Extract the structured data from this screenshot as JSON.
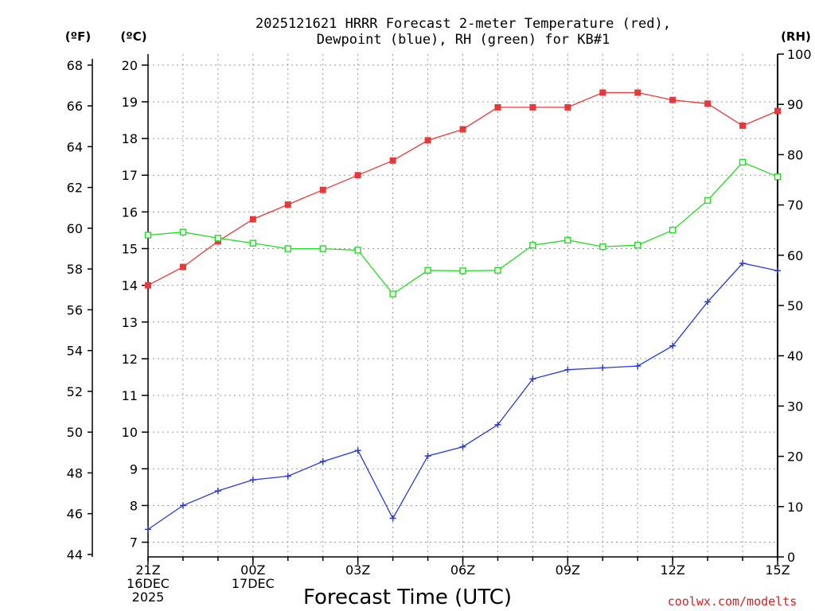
{
  "chart_data": {
    "type": "line",
    "title_line1": "2025121621 HRRR Forecast 2-meter Temperature (red),",
    "title_line2": "Dewpoint (blue), RH (green) for KB#1",
    "xlabel": "Forecast Time (UTC)",
    "credit": "coolwx.com/modelts",
    "units": {
      "fahrenheit": "(ºF)",
      "celsius": "(ºC)",
      "rh": "(RH)"
    },
    "x_hours": [
      0,
      1,
      2,
      3,
      4,
      5,
      6,
      7,
      8,
      9,
      10,
      11,
      12,
      13,
      14,
      15,
      16,
      17,
      18
    ],
    "xlim": [
      0,
      18
    ],
    "x_ticks": [
      {
        "hour": 0,
        "lines": [
          "21Z",
          "16DEC",
          "2025"
        ]
      },
      {
        "hour": 3,
        "lines": [
          "00Z",
          "17DEC"
        ]
      },
      {
        "hour": 6,
        "lines": [
          "03Z"
        ]
      },
      {
        "hour": 9,
        "lines": [
          "06Z"
        ]
      },
      {
        "hour": 12,
        "lines": [
          "09Z"
        ]
      },
      {
        "hour": 15,
        "lines": [
          "12Z"
        ]
      },
      {
        "hour": 18,
        "lines": [
          "15Z"
        ]
      }
    ],
    "y_celsius": {
      "range": [
        6.6,
        20.3
      ],
      "ticks": [
        7,
        8,
        9,
        10,
        11,
        12,
        13,
        14,
        15,
        16,
        17,
        18,
        19,
        20
      ]
    },
    "y_fahrenheit": {
      "ticks": [
        44,
        46,
        48,
        50,
        52,
        54,
        56,
        58,
        60,
        62,
        64,
        66,
        68
      ]
    },
    "y_rh": {
      "range": [
        0,
        100
      ],
      "ticks": [
        0,
        10,
        20,
        30,
        40,
        50,
        60,
        70,
        80,
        90,
        100
      ]
    },
    "series": [
      {
        "name": "2-meter Temperature",
        "color": "#e8393a",
        "axis": "celsius",
        "marker": "filled-square",
        "values": [
          14.0,
          14.5,
          15.2,
          15.8,
          16.2,
          16.6,
          17.0,
          17.4,
          17.95,
          18.25,
          18.85,
          18.85,
          18.85,
          19.25,
          19.25,
          19.05,
          18.95,
          18.35,
          18.75
        ]
      },
      {
        "name": "Dewpoint",
        "color": "#2a3bd6",
        "axis": "celsius",
        "marker": "plus",
        "values": [
          7.35,
          8.0,
          8.4,
          8.7,
          8.8,
          9.2,
          9.5,
          7.65,
          9.35,
          9.6,
          10.2,
          11.45,
          11.7,
          11.75,
          11.8,
          12.35,
          13.55,
          14.6,
          14.4
        ]
      },
      {
        "name": "RH",
        "color": "#22dd22",
        "axis": "rh",
        "marker": "open-square",
        "values": [
          64.0,
          64.6,
          63.4,
          62.4,
          61.3,
          61.3,
          61.0,
          52.3,
          57.0,
          56.9,
          57.0,
          62.0,
          63.0,
          61.7,
          62.0,
          65.0,
          70.9,
          78.5,
          75.6
        ]
      }
    ]
  }
}
